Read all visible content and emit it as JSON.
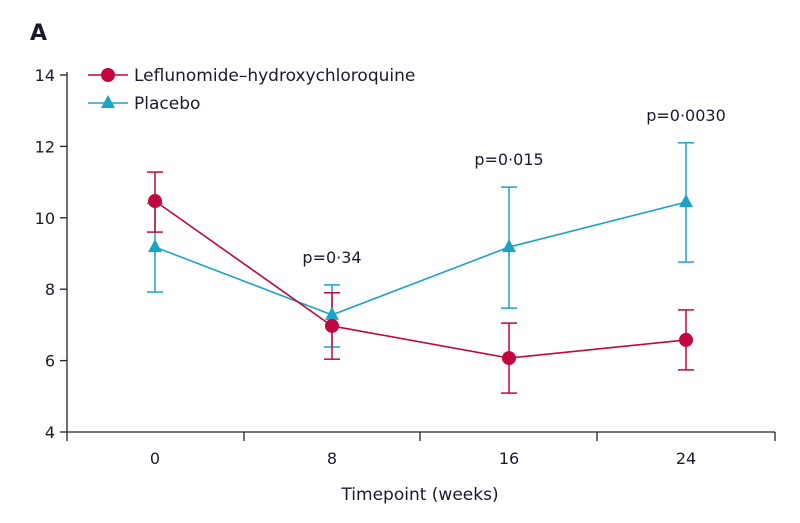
{
  "panel_label": "A",
  "chart_data": {
    "type": "line",
    "title": "",
    "xlabel": "Timepoint (weeks)",
    "ylabel": "",
    "x": [
      0,
      8,
      16,
      24
    ],
    "xlim": [
      -8,
      28
    ],
    "ylim": [
      4,
      14
    ],
    "yticks": [
      4,
      6,
      8,
      10,
      12,
      14
    ],
    "xtick_labels": [
      "0",
      "8",
      "16",
      "24"
    ],
    "legend_placement": "top-left",
    "series": [
      {
        "name": "Leflunomide–hydroxychloroquine",
        "color": "#c0073f",
        "marker": "circle",
        "values": [
          10.47,
          6.97,
          6.07,
          6.58
        ],
        "err_low": [
          9.6,
          6.04,
          5.09,
          5.74
        ],
        "err_high": [
          11.28,
          7.9,
          7.05,
          7.42
        ]
      },
      {
        "name": "Placebo",
        "color": "#1ba3c6",
        "marker": "triangle",
        "values": [
          9.18,
          7.28,
          9.18,
          10.44
        ],
        "err_low": [
          7.92,
          6.38,
          7.47,
          8.76
        ],
        "err_high": [
          10.4,
          8.12,
          10.86,
          12.1
        ]
      }
    ],
    "annotations": [
      {
        "x": 8,
        "text": "p=0·34"
      },
      {
        "x": 16,
        "text": "p=0·015"
      },
      {
        "x": 24,
        "text": "p=0·0030"
      }
    ]
  }
}
